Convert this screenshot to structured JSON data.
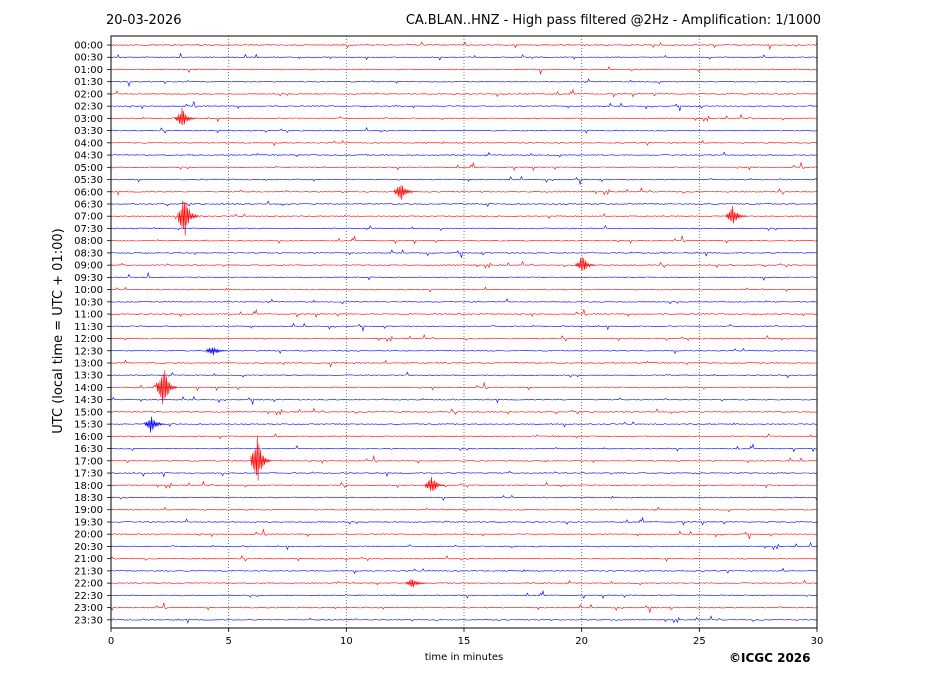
{
  "header": {
    "date": "20-03-2026",
    "title": "CA.BLAN..HNZ - High pass filtered @2Hz - Amplification: 1/1000"
  },
  "copyright": "©ICGC 2026",
  "chart_data": {
    "type": "line",
    "title": "CA.BLAN..HNZ - High pass filtered @2Hz - Amplification: 1/1000",
    "xlabel": "time in minutes",
    "ylabel": "UTC (local time = UTC + 01:00)",
    "xlim": [
      0,
      30
    ],
    "x_ticks": [
      0,
      5,
      10,
      15,
      20,
      25,
      30
    ],
    "grid": "vertical dotted lines at 5-minute intervals",
    "trace_colors": [
      "#ff0000",
      "#0000ff"
    ],
    "rows": [
      "00:00",
      "00:30",
      "01:00",
      "01:30",
      "02:00",
      "02:30",
      "03:00",
      "03:30",
      "04:00",
      "04:30",
      "05:00",
      "05:30",
      "06:00",
      "06:30",
      "07:00",
      "07:30",
      "08:00",
      "08:30",
      "09:00",
      "09:30",
      "10:00",
      "10:30",
      "11:00",
      "11:30",
      "12:00",
      "12:30",
      "13:00",
      "13:30",
      "14:00",
      "14:30",
      "15:00",
      "15:30",
      "16:00",
      "16:30",
      "17:00",
      "17:30",
      "18:00",
      "18:30",
      "19:00",
      "19:30",
      "20:00",
      "20:30",
      "21:00",
      "21:30",
      "22:00",
      "22:30",
      "23:00",
      "23:30"
    ],
    "events": [
      {
        "row": "03:00",
        "minute": 3.0,
        "amplitude": "medium"
      },
      {
        "row": "06:00",
        "minute": 12.3,
        "amplitude": "medium"
      },
      {
        "row": "07:00",
        "minute": 3.1,
        "amplitude": "large"
      },
      {
        "row": "07:00",
        "minute": 26.4,
        "amplitude": "medium"
      },
      {
        "row": "09:00",
        "minute": 20.0,
        "amplitude": "medium"
      },
      {
        "row": "12:30",
        "minute": 4.3,
        "amplitude": "small"
      },
      {
        "row": "14:00",
        "minute": 2.2,
        "amplitude": "large"
      },
      {
        "row": "15:30",
        "minute": 1.7,
        "amplitude": "medium"
      },
      {
        "row": "17:00",
        "minute": 6.2,
        "amplitude": "large"
      },
      {
        "row": "18:00",
        "minute": 13.6,
        "amplitude": "medium"
      },
      {
        "row": "22:00",
        "minute": 12.8,
        "amplitude": "small"
      }
    ]
  }
}
